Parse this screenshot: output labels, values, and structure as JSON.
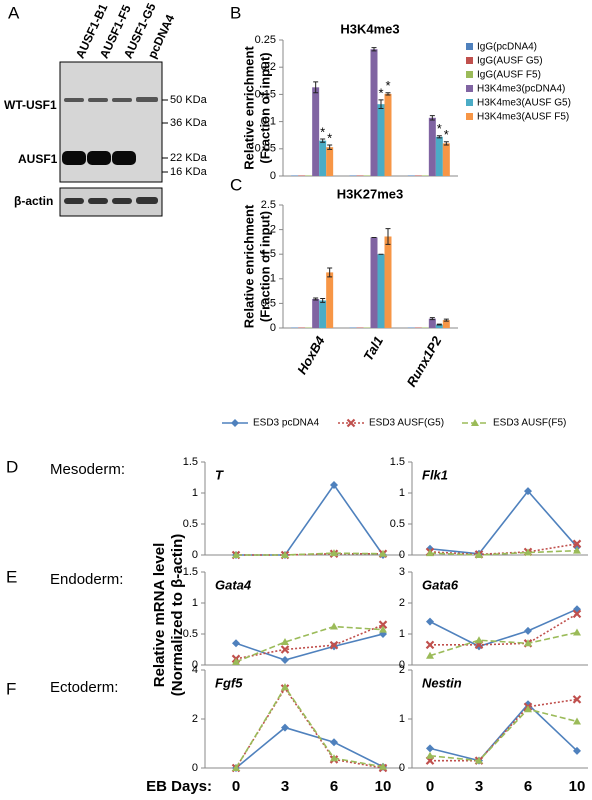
{
  "panel_letters": [
    "A",
    "B",
    "C",
    "D",
    "E",
    "F"
  ],
  "row_labels": [
    "Mesoderm:",
    "Endoderm:",
    "Ectoderm:"
  ],
  "blot": {
    "lanes": [
      "AUSF1-B1",
      "AUSF1-F5",
      "AUSF1-G5",
      "pcDNA4"
    ],
    "rows": [
      "WT-USF1",
      "AUSF1",
      "β-actin"
    ],
    "markers": [
      "50 KDa",
      "36 KDa",
      "22 KDa",
      "16 KDa"
    ]
  },
  "chart_data": [
    {
      "type": "bar",
      "title": "H3K4me3",
      "ylabel": [
        "Relative enrichment",
        "(Fraction of input)"
      ],
      "categories": [
        null,
        null,
        null
      ],
      "ylim": [
        0,
        0.25
      ],
      "yticks": [
        0,
        0.05,
        0.1,
        0.15,
        0.2,
        0.25
      ],
      "legend": "right",
      "series": [
        {
          "name": "IgG(pcDNA4)",
          "color": "#4f81bd",
          "values": [
            0.001,
            0.001,
            0.001
          ]
        },
        {
          "name": "IgG(AUSF G5)",
          "color": "#c0504d",
          "values": [
            0.001,
            0.001,
            0.001
          ]
        },
        {
          "name": "IgG(AUSF F5)",
          "color": "#9bbb59",
          "values": [
            0.001,
            0.001,
            0.001
          ]
        },
        {
          "name": "H3K4me3(pcDNA4)",
          "color": "#8064a2",
          "values": [
            0.163,
            0.233,
            0.107
          ],
          "errors": [
            0.01,
            0.003,
            0.004
          ]
        },
        {
          "name": "H3K4me3(AUSF G5)",
          "color": "#4bacc6",
          "values": [
            0.065,
            0.132,
            0.072
          ],
          "errors": [
            0.003,
            0.008,
            0.002
          ],
          "significance": [
            "*",
            "*",
            "*"
          ]
        },
        {
          "name": "H3K4me3(AUSF F5)",
          "color": "#f79646",
          "values": [
            0.053,
            0.151,
            0.06
          ],
          "errors": [
            0.004,
            0.002,
            0.003
          ],
          "significance": [
            "*",
            "*",
            "*"
          ]
        }
      ]
    },
    {
      "type": "bar",
      "title": "H3K27me3",
      "ylabel": [
        "Relative enrichment",
        "(Fraction of input)"
      ],
      "categories": [
        "HoxB4",
        "Tal1",
        "Runx1P2"
      ],
      "ylim": [
        0,
        2.5
      ],
      "yticks": [
        0,
        0.5,
        1,
        1.5,
        2,
        2.5
      ],
      "series": [
        {
          "color": "#4f81bd",
          "values": [
            0.01,
            0.01,
            0.01
          ]
        },
        {
          "color": "#c0504d",
          "values": [
            0.01,
            0.01,
            0.01
          ]
        },
        {
          "color": "#9bbb59",
          "values": [
            0.01,
            0.01,
            0.01
          ]
        },
        {
          "color": "#8064a2",
          "values": [
            0.59,
            1.84,
            0.19
          ],
          "errors": [
            0.02,
            0,
            0.02
          ]
        },
        {
          "color": "#4bacc6",
          "values": [
            0.56,
            1.5,
            0.07
          ],
          "errors": [
            0.04,
            0,
            0.01
          ]
        },
        {
          "color": "#f79646",
          "values": [
            1.13,
            1.86,
            0.16
          ],
          "errors": [
            0.09,
            0.16,
            0.02
          ]
        }
      ]
    },
    {
      "type": "line",
      "title": "T",
      "ylabel": [
        "Relative  mRNA level",
        "(Normalized to β-actin)"
      ],
      "legend": "top",
      "categories": [
        null,
        null,
        null,
        null
      ],
      "ylim": [
        0,
        1.5
      ],
      "yticks": [
        0,
        0.5,
        1,
        1.5
      ],
      "series": [
        {
          "name": "ESD3 pcDNA4",
          "color": "#4f81bd",
          "marker": "diamond",
          "line_style": "solid",
          "values": [
            0,
            0,
            1.13,
            0
          ]
        },
        {
          "name": "ESD3 AUSF(G5)",
          "color": "#c0504d",
          "marker": "x",
          "line_style": "dotted",
          "values": [
            0,
            0,
            0.02,
            0.02
          ]
        },
        {
          "name": "ESD3 AUSF(F5)",
          "color": "#9bbb59",
          "marker": "triangle",
          "line_style": "dashed",
          "values": [
            0,
            0,
            0.03,
            0.02
          ]
        }
      ]
    },
    {
      "type": "line",
      "title": "Flk1",
      "categories": [
        null,
        null,
        null,
        null
      ],
      "ylim": [
        0,
        1.5
      ],
      "yticks": [
        0,
        0.5,
        1,
        1.5
      ],
      "series": [
        {
          "color": "#4f81bd",
          "marker": "diamond",
          "line_style": "solid",
          "values": [
            0.1,
            0.02,
            1.03,
            0.13
          ]
        },
        {
          "color": "#c0504d",
          "marker": "x",
          "line_style": "dotted",
          "values": [
            0.05,
            0.01,
            0.05,
            0.18
          ]
        },
        {
          "color": "#9bbb59",
          "marker": "triangle",
          "line_style": "dashed",
          "values": [
            0.03,
            0,
            0.04,
            0.07
          ]
        }
      ]
    },
    {
      "type": "line",
      "title": "Gata4",
      "categories": [
        null,
        null,
        null,
        null
      ],
      "ylim": [
        0,
        1.5
      ],
      "yticks": [
        0,
        0.5,
        1,
        1.5
      ],
      "series": [
        {
          "color": "#4f81bd",
          "marker": "diamond",
          "line_style": "solid",
          "values": [
            0.35,
            0.08,
            0.3,
            0.5
          ]
        },
        {
          "color": "#c0504d",
          "marker": "x",
          "line_style": "dotted",
          "values": [
            0.1,
            0.25,
            0.32,
            0.65
          ]
        },
        {
          "color": "#9bbb59",
          "marker": "triangle",
          "line_style": "dashed",
          "values": [
            0.05,
            0.37,
            0.62,
            0.57
          ]
        }
      ]
    },
    {
      "type": "line",
      "title": "Gata6",
      "categories": [
        null,
        null,
        null,
        null
      ],
      "ylim": [
        0,
        3
      ],
      "yticks": [
        0,
        1,
        2,
        3
      ],
      "series": [
        {
          "color": "#4f81bd",
          "marker": "diamond",
          "line_style": "solid",
          "values": [
            1.4,
            0.6,
            1.1,
            1.8
          ]
        },
        {
          "color": "#c0504d",
          "marker": "x",
          "line_style": "dotted",
          "values": [
            0.65,
            0.65,
            0.7,
            1.65
          ]
        },
        {
          "color": "#9bbb59",
          "marker": "triangle",
          "line_style": "dashed",
          "values": [
            0.3,
            0.8,
            0.7,
            1.05
          ]
        }
      ]
    },
    {
      "type": "line",
      "title": "Fgf5",
      "xlabel": "EB Days:",
      "categories": [
        "0",
        "3",
        "6",
        "10"
      ],
      "ylim": [
        0,
        4
      ],
      "yticks": [
        0,
        2,
        4
      ],
      "series": [
        {
          "color": "#4f81bd",
          "marker": "diamond",
          "line_style": "solid",
          "values": [
            0,
            1.65,
            1.05,
            0.05
          ]
        },
        {
          "color": "#c0504d",
          "marker": "x",
          "line_style": "dotted",
          "values": [
            0,
            3.25,
            0.35,
            0
          ]
        },
        {
          "color": "#9bbb59",
          "marker": "triangle",
          "line_style": "dashed",
          "values": [
            0,
            3.3,
            0.4,
            0.05
          ]
        }
      ]
    },
    {
      "type": "line",
      "title": "Nestin",
      "categories": [
        "0",
        "3",
        "6",
        "10"
      ],
      "ylim": [
        0,
        2
      ],
      "yticks": [
        0,
        1,
        2
      ],
      "series": [
        {
          "color": "#4f81bd",
          "marker": "diamond",
          "line_style": "solid",
          "values": [
            0.4,
            0.15,
            1.3,
            0.35
          ]
        },
        {
          "color": "#c0504d",
          "marker": "x",
          "line_style": "dotted",
          "values": [
            0.15,
            0.15,
            1.25,
            1.4
          ]
        },
        {
          "color": "#9bbb59",
          "marker": "triangle",
          "line_style": "dashed",
          "values": [
            0.25,
            0.15,
            1.2,
            0.95
          ]
        }
      ]
    }
  ]
}
